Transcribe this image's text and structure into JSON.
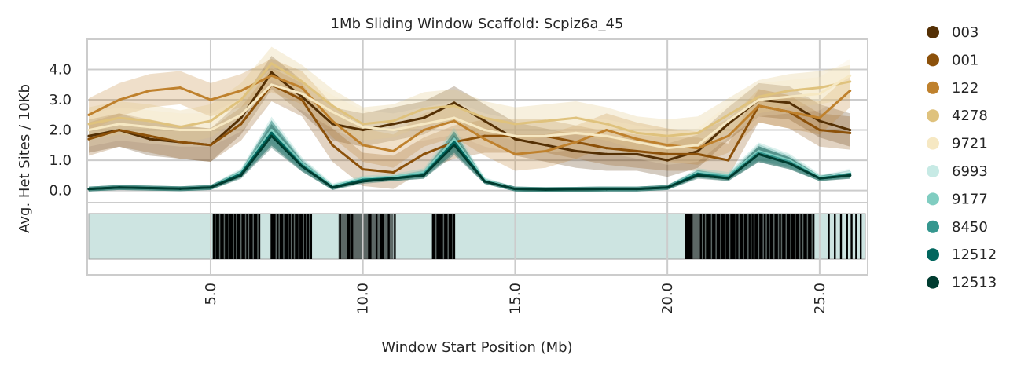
{
  "chart_data": {
    "type": "line",
    "title": "1Mb Sliding Window Scaffold: Scpiz6a_45",
    "xlabel": "Window Start Position (Mb)",
    "ylabel": "Avg. Het Sites / 10Kb",
    "xlim": [
      1.0,
      26.5
    ],
    "ylim": [
      -0.4,
      5.0
    ],
    "x_ticks": [
      5.0,
      10.0,
      15.0,
      20.0,
      25.0
    ],
    "x_tick_labels": [
      "5.0",
      "10.0",
      "15.0",
      "20.0",
      "25.0"
    ],
    "y_ticks": [
      0.0,
      1.0,
      2.0,
      3.0,
      4.0
    ],
    "y_tick_labels": [
      "0.0",
      "1.0",
      "2.0",
      "3.0",
      "4.0"
    ],
    "grid": true,
    "legend_position": "right",
    "x": [
      1,
      2,
      3,
      4,
      5,
      6,
      7,
      8,
      9,
      10,
      11,
      12,
      13,
      14,
      15,
      16,
      17,
      18,
      19,
      20,
      21,
      22,
      23,
      24,
      25,
      26
    ],
    "series": [
      {
        "name": "003",
        "color": "#543005",
        "values": [
          1.8,
          2.0,
          1.7,
          1.6,
          1.5,
          2.4,
          3.9,
          3.1,
          2.2,
          2.0,
          2.2,
          2.4,
          2.9,
          2.3,
          1.7,
          1.5,
          1.3,
          1.2,
          1.2,
          1.0,
          1.3,
          2.2,
          3.0,
          2.9,
          2.3,
          2.0
        ]
      },
      {
        "name": "001",
        "color": "#8c510a",
        "values": [
          1.7,
          2.0,
          1.8,
          1.6,
          1.5,
          2.2,
          3.5,
          3.0,
          1.5,
          0.7,
          0.6,
          1.2,
          1.6,
          1.8,
          1.8,
          1.8,
          1.6,
          1.4,
          1.3,
          1.2,
          1.2,
          1.0,
          2.8,
          2.6,
          2.0,
          1.9
        ]
      },
      {
        "name": "122",
        "color": "#bf812d",
        "values": [
          2.5,
          3.0,
          3.3,
          3.4,
          3.0,
          3.3,
          3.8,
          3.4,
          2.3,
          1.5,
          1.3,
          2.0,
          2.3,
          1.7,
          1.2,
          1.3,
          1.6,
          2.0,
          1.7,
          1.5,
          1.4,
          1.8,
          2.8,
          2.6,
          2.4,
          3.3
        ]
      },
      {
        "name": "4278",
        "color": "#dfc27d",
        "values": [
          2.2,
          2.4,
          2.3,
          2.1,
          2.3,
          3.0,
          4.2,
          3.6,
          2.8,
          2.2,
          2.3,
          2.7,
          2.8,
          2.4,
          2.2,
          2.3,
          2.4,
          2.2,
          1.9,
          1.8,
          1.9,
          2.5,
          3.1,
          3.3,
          3.4,
          3.6
        ]
      },
      {
        "name": "9721",
        "color": "#f6e8c3",
        "values": [
          2.0,
          2.2,
          2.1,
          2.0,
          2.0,
          2.5,
          3.5,
          3.2,
          2.6,
          2.1,
          2.0,
          2.2,
          2.4,
          2.0,
          1.8,
          1.8,
          1.9,
          1.8,
          1.6,
          1.4,
          1.5,
          2.3,
          3.0,
          3.1,
          3.2,
          3.8
        ]
      },
      {
        "name": "6993",
        "color": "#c7eae5",
        "values": [
          0.05,
          0.1,
          0.08,
          0.06,
          0.1,
          0.5,
          1.8,
          0.8,
          0.1,
          0.3,
          0.4,
          0.5,
          1.5,
          0.3,
          0.05,
          0.03,
          0.04,
          0.05,
          0.05,
          0.1,
          0.5,
          0.4,
          1.2,
          0.9,
          0.4,
          0.6
        ]
      },
      {
        "name": "9177",
        "color": "#80cdc1",
        "values": [
          0.05,
          0.1,
          0.08,
          0.06,
          0.1,
          0.6,
          2.0,
          0.9,
          0.15,
          0.4,
          0.45,
          0.6,
          1.7,
          0.35,
          0.05,
          0.03,
          0.04,
          0.05,
          0.05,
          0.1,
          0.6,
          0.5,
          1.3,
          1.0,
          0.45,
          0.5
        ]
      },
      {
        "name": "8450",
        "color": "#35978f",
        "values": [
          0.05,
          0.1,
          0.08,
          0.06,
          0.1,
          0.55,
          1.9,
          0.85,
          0.1,
          0.35,
          0.4,
          0.55,
          1.6,
          0.3,
          0.05,
          0.03,
          0.04,
          0.05,
          0.05,
          0.1,
          0.55,
          0.45,
          1.25,
          0.95,
          0.4,
          0.55
        ]
      },
      {
        "name": "12512",
        "color": "#01665e",
        "values": [
          0.05,
          0.1,
          0.08,
          0.06,
          0.1,
          0.55,
          1.9,
          0.8,
          0.1,
          0.35,
          0.4,
          0.5,
          1.6,
          0.3,
          0.05,
          0.03,
          0.04,
          0.05,
          0.05,
          0.1,
          0.55,
          0.4,
          1.2,
          0.9,
          0.4,
          0.5
        ]
      },
      {
        "name": "12513",
        "color": "#003c30",
        "values": [
          0.05,
          0.1,
          0.08,
          0.06,
          0.1,
          0.5,
          1.8,
          0.8,
          0.1,
          0.3,
          0.4,
          0.5,
          1.5,
          0.3,
          0.05,
          0.03,
          0.04,
          0.05,
          0.05,
          0.1,
          0.5,
          0.4,
          1.2,
          0.9,
          0.4,
          0.5
        ]
      }
    ],
    "lower_track": {
      "background_color": "#cde4e1",
      "bar_color": "#000000",
      "dense_regions_mb": [
        [
          5.1,
          6.6
        ],
        [
          7.0,
          8.3
        ],
        [
          9.2,
          11.0
        ],
        [
          12.3,
          13.0
        ],
        [
          20.6,
          24.8
        ]
      ],
      "marks_mb": [
        5.1,
        5.2,
        5.25,
        5.35,
        5.4,
        5.5,
        5.55,
        5.65,
        5.7,
        5.8,
        5.9,
        5.95,
        6.05,
        6.1,
        6.2,
        6.3,
        6.35,
        6.45,
        6.5,
        6.6,
        7.0,
        7.05,
        7.1,
        7.2,
        7.3,
        7.35,
        7.45,
        7.5,
        7.6,
        7.7,
        7.8,
        7.85,
        7.95,
        8.0,
        8.1,
        8.2,
        8.3,
        9.25,
        9.5,
        9.55,
        9.65,
        10.0,
        10.2,
        10.25,
        10.45,
        10.6,
        10.65,
        10.85,
        11.05,
        12.3,
        12.35,
        12.45,
        12.5,
        12.55,
        12.6,
        12.7,
        12.75,
        12.85,
        12.9,
        13.0,
        20.6,
        20.65,
        20.7,
        20.75,
        20.8,
        21.1,
        21.2,
        21.3,
        21.35,
        21.4,
        21.5,
        21.55,
        21.65,
        21.7,
        21.8,
        21.85,
        21.95,
        22.0,
        22.1,
        22.15,
        22.2,
        22.3,
        22.4,
        22.45,
        22.55,
        22.6,
        22.7,
        22.8,
        22.9,
        22.95,
        23.05,
        23.1,
        23.2,
        23.3,
        23.4,
        23.45,
        23.55,
        23.6,
        23.7,
        23.8,
        23.85,
        23.95,
        24.0,
        24.1,
        24.15,
        24.25,
        24.3,
        24.4,
        24.5,
        24.55,
        24.65,
        24.7,
        24.8,
        25.3,
        25.5,
        25.7,
        25.9,
        26.05,
        26.2,
        26.35
      ]
    }
  }
}
